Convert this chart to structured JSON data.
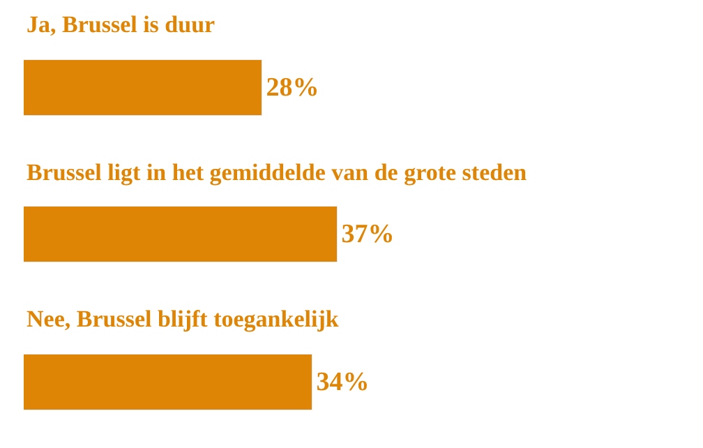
{
  "chart_data": {
    "type": "bar",
    "orientation": "horizontal",
    "categories": [
      "Ja, Brussel is duur",
      "Brussel ligt in het gemiddelde van de grote steden",
      "Nee, Brussel blijft toegankelijk"
    ],
    "values": [
      28,
      37,
      34
    ],
    "value_labels": [
      "28%",
      "37%",
      "34%"
    ],
    "color": "#df8506"
  }
}
